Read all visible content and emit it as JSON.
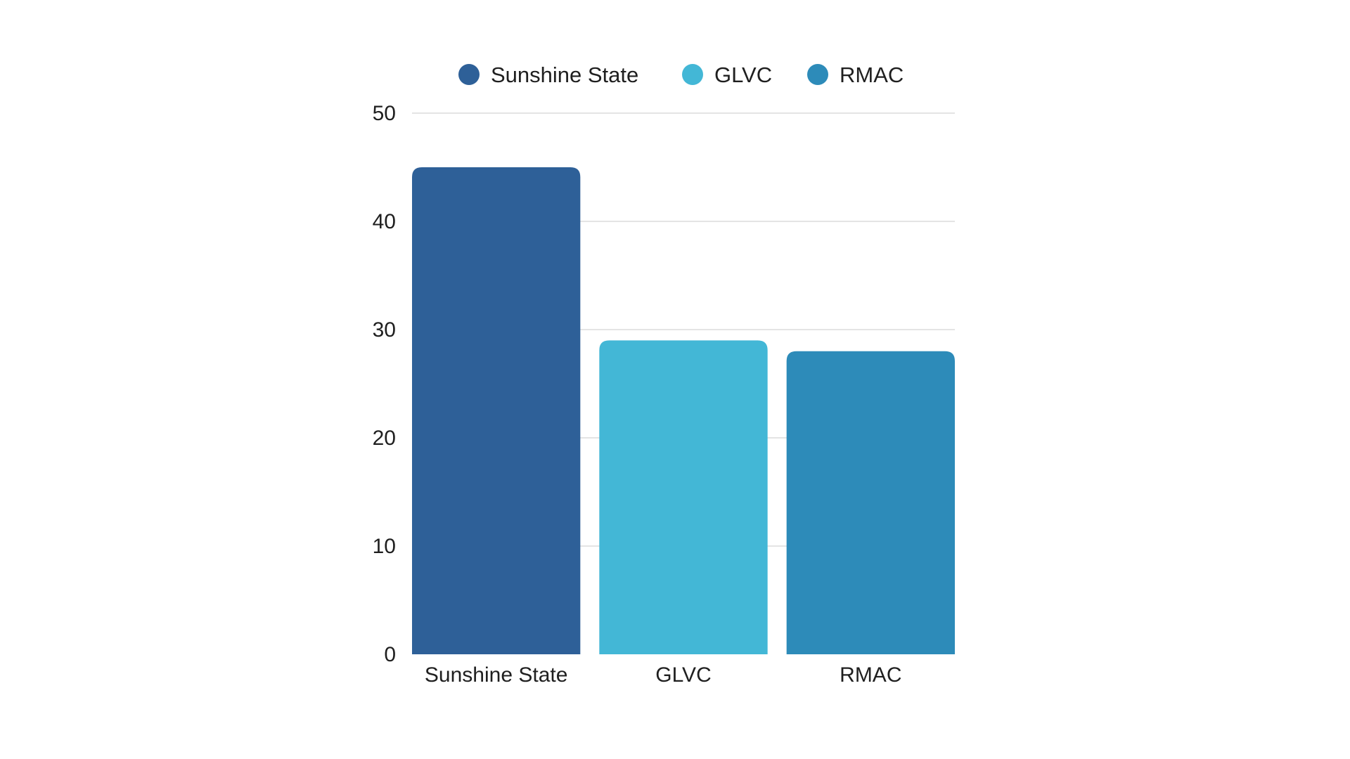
{
  "chart_data": {
    "type": "bar",
    "title": "",
    "xlabel": "",
    "ylabel": "",
    "categories": [
      "Sunshine State",
      "GLVC",
      "RMAC"
    ],
    "values": [
      45,
      29,
      28
    ],
    "colors": [
      "#2e6098",
      "#43b7d6",
      "#2d8bb9"
    ],
    "ylim": [
      0,
      50
    ],
    "yticks": [
      "0",
      "10",
      "20",
      "30",
      "40",
      "50"
    ],
    "grid": true,
    "legend": {
      "placement": "top-center",
      "entries": [
        {
          "label": "Sunshine State",
          "color": "#2e6098"
        },
        {
          "label": "GLVC",
          "color": "#43b7d6"
        },
        {
          "label": "RMAC",
          "color": "#2d8bb9"
        }
      ]
    }
  }
}
